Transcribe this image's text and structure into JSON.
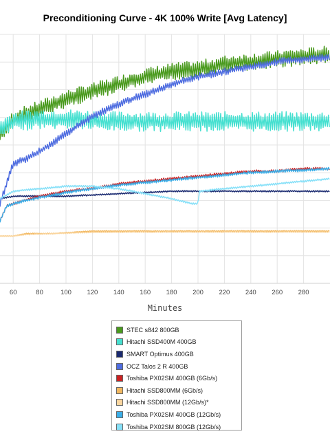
{
  "chart_data": {
    "type": "line",
    "title": "Preconditioning Curve - 4K 100% Write [Avg Latency]",
    "xlabel": "Minutes",
    "ylabel": "",
    "x_ticks": [
      60,
      80,
      100,
      120,
      140,
      160,
      180,
      200,
      220,
      240,
      260,
      280
    ],
    "xlim": [
      50,
      300
    ],
    "ylim": [
      0,
      100
    ],
    "y_axis_labels_visible": false,
    "grid": true,
    "legend_position": "bottom",
    "series": [
      {
        "name": "STEC s842 800GB",
        "color": "#4a9a1e",
        "points": [
          [
            50,
            60
          ],
          [
            55,
            62
          ],
          [
            60,
            66
          ],
          [
            70,
            68
          ],
          [
            80,
            70
          ],
          [
            100,
            74
          ],
          [
            120,
            77
          ],
          [
            140,
            80
          ],
          [
            160,
            83
          ],
          [
            180,
            85
          ],
          [
            200,
            86
          ],
          [
            220,
            88
          ],
          [
            240,
            89
          ],
          [
            260,
            90
          ],
          [
            280,
            91
          ],
          [
            300,
            92
          ]
        ],
        "noise": 3.5
      },
      {
        "name": "Hitachi SSD400M 400GB",
        "color": "#45e0d0",
        "points": [
          [
            50,
            62
          ],
          [
            60,
            65
          ],
          [
            80,
            66
          ],
          [
            100,
            66
          ],
          [
            140,
            65
          ],
          [
            180,
            65
          ],
          [
            220,
            65
          ],
          [
            260,
            65
          ],
          [
            300,
            65
          ]
        ],
        "noise": 4
      },
      {
        "name": "SMART Optimus 400GB",
        "color": "#1a2a70",
        "points": [
          [
            50,
            34
          ],
          [
            60,
            35
          ],
          [
            100,
            35
          ],
          [
            140,
            36
          ],
          [
            180,
            37
          ],
          [
            220,
            37
          ],
          [
            260,
            37
          ],
          [
            300,
            37
          ]
        ],
        "noise": 0.3
      },
      {
        "name": "OCZ Talos 2 R 400GB",
        "color": "#4f6de0",
        "points": [
          [
            50,
            32
          ],
          [
            55,
            40
          ],
          [
            60,
            48
          ],
          [
            70,
            50
          ],
          [
            80,
            53
          ],
          [
            100,
            60
          ],
          [
            120,
            67
          ],
          [
            140,
            72
          ],
          [
            160,
            76
          ],
          [
            180,
            80
          ],
          [
            200,
            83
          ],
          [
            220,
            85
          ],
          [
            240,
            87
          ],
          [
            260,
            89
          ],
          [
            280,
            90
          ],
          [
            300,
            91
          ]
        ],
        "noise": 1.5
      },
      {
        "name": "Toshiba PX02SM 400GB (6Gb/s)",
        "color": "#cc2222",
        "points": [
          [
            50,
            25
          ],
          [
            55,
            31
          ],
          [
            60,
            32
          ],
          [
            80,
            35
          ],
          [
            100,
            37
          ],
          [
            120,
            38
          ],
          [
            140,
            40
          ],
          [
            160,
            41
          ],
          [
            180,
            42
          ],
          [
            200,
            43
          ],
          [
            220,
            44
          ],
          [
            240,
            45
          ],
          [
            260,
            45
          ],
          [
            280,
            46
          ],
          [
            300,
            46
          ]
        ],
        "noise": 0.6
      },
      {
        "name": "Hitachi SSD800MM (6Gb/s)",
        "color": "#f2b860",
        "points": [
          [
            50,
            19
          ],
          [
            60,
            19
          ],
          [
            70,
            20
          ],
          [
            90,
            20
          ],
          [
            120,
            21
          ],
          [
            160,
            21
          ],
          [
            200,
            21
          ],
          [
            240,
            21
          ],
          [
            300,
            21
          ]
        ],
        "noise": 0.2
      },
      {
        "name": "Hitachi SSD800MM (12Gb/s)*",
        "color": "#fad6a0",
        "points": [
          [
            50,
            19
          ],
          [
            60,
            19
          ],
          [
            70,
            19.6
          ],
          [
            90,
            20
          ],
          [
            120,
            20.5
          ],
          [
            160,
            20.6
          ],
          [
            200,
            20.6
          ],
          [
            240,
            20.6
          ],
          [
            300,
            20.6
          ]
        ],
        "noise": 0.2
      },
      {
        "name": "Toshiba PX02SM 400GB (12Gb/s)",
        "color": "#3aaee8",
        "points": [
          [
            50,
            25
          ],
          [
            55,
            31
          ],
          [
            60,
            32
          ],
          [
            80,
            34.5
          ],
          [
            100,
            36.5
          ],
          [
            120,
            38
          ],
          [
            140,
            39.5
          ],
          [
            160,
            40.5
          ],
          [
            180,
            41.5
          ],
          [
            200,
            42.5
          ],
          [
            220,
            43.5
          ],
          [
            240,
            44.5
          ],
          [
            260,
            45
          ],
          [
            280,
            45.5
          ],
          [
            300,
            46
          ]
        ],
        "noise": 0.6
      },
      {
        "name": "Toshiba PX02SM 800GB (12Gb/s)",
        "color": "#86e0f8",
        "points": [
          [
            50,
            34
          ],
          [
            60,
            37
          ],
          [
            80,
            38
          ],
          [
            100,
            39
          ],
          [
            120,
            39
          ],
          [
            140,
            38
          ],
          [
            160,
            36
          ],
          [
            180,
            34
          ],
          [
            195,
            32
          ],
          [
            200,
            32
          ],
          [
            201,
            37
          ],
          [
            220,
            38
          ],
          [
            240,
            39
          ],
          [
            260,
            40
          ],
          [
            280,
            41
          ],
          [
            300,
            42
          ]
        ],
        "noise": 0.4
      }
    ]
  }
}
